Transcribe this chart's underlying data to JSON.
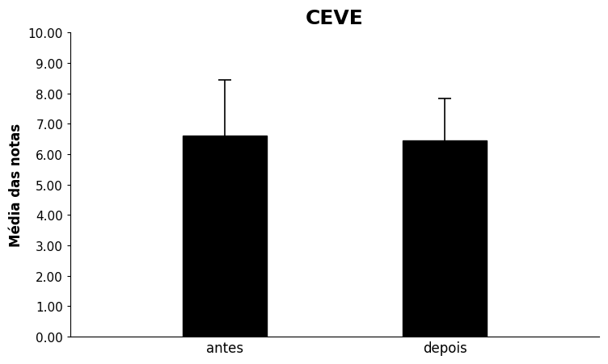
{
  "categories": [
    "antes",
    "depois"
  ],
  "values": [
    6.62,
    6.45
  ],
  "errors": [
    1.83,
    1.37
  ],
  "bar_color": "#000000",
  "bar_width": 0.38,
  "title": "CEVE",
  "ylabel": "Média das notas",
  "ylim": [
    0,
    10.0
  ],
  "yticks": [
    0.0,
    1.0,
    2.0,
    3.0,
    4.0,
    5.0,
    6.0,
    7.0,
    8.0,
    9.0,
    10.0
  ],
  "ytick_labels": [
    "0.00",
    "1.00",
    "2.00",
    "3.00",
    "4.00",
    "5.00",
    "6.00",
    "7.00",
    "8.00",
    "9.00",
    "10.00"
  ],
  "title_fontsize": 18,
  "ylabel_fontsize": 12,
  "tick_fontsize": 11,
  "xtick_fontsize": 12,
  "background_color": "#ffffff",
  "error_capsize": 6,
  "error_linewidth": 1.2,
  "x_positions": [
    1,
    2
  ],
  "xlim": [
    0.3,
    2.7
  ]
}
